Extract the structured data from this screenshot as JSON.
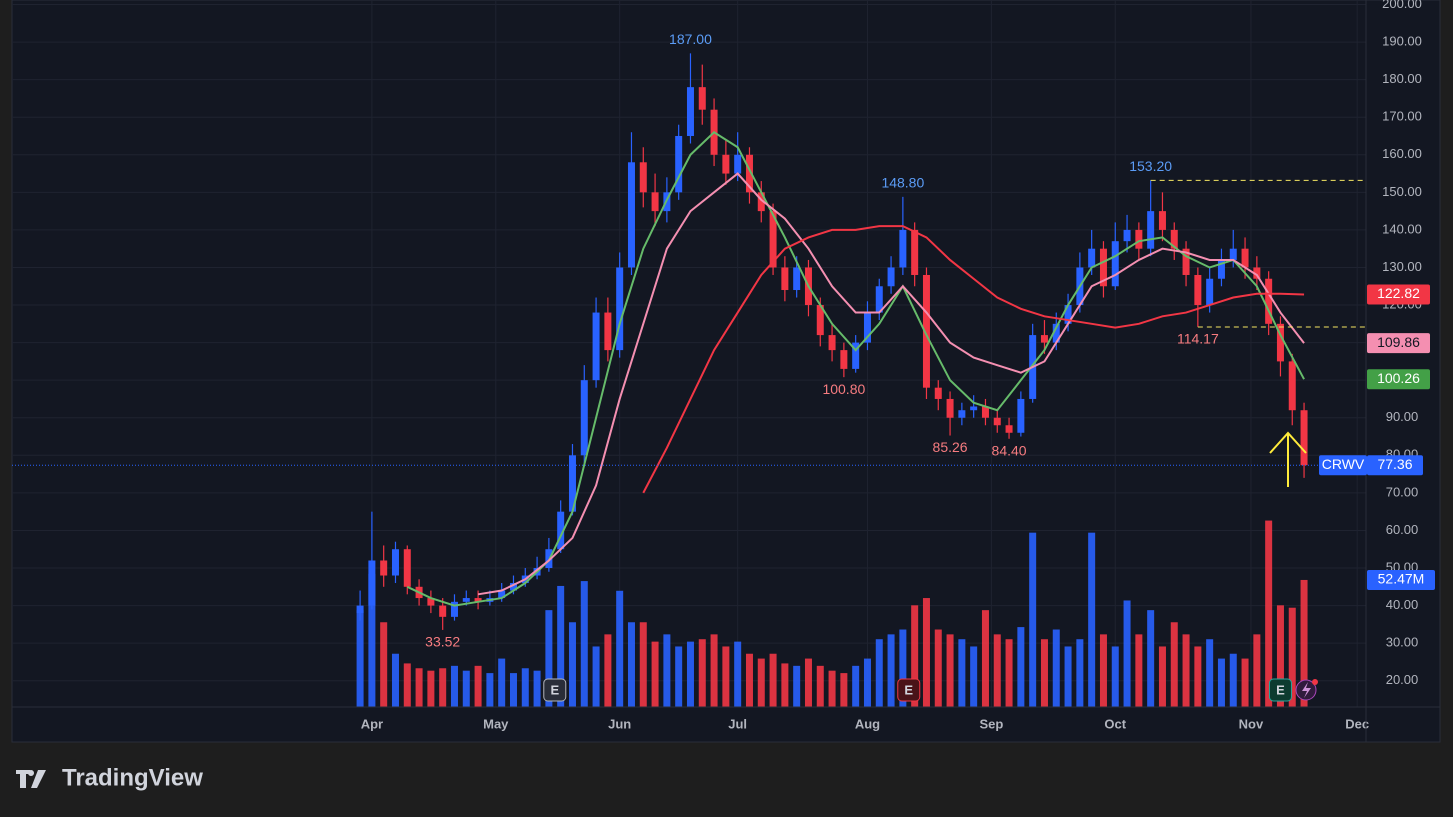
{
  "chart_data": {
    "type": "candlestick",
    "symbol": "CRWV",
    "up_color": "#2962ff",
    "down_color": "#f23645",
    "grid": true,
    "ylim": [
      13,
      201.2
    ],
    "yticks": [
      {
        "value": 20,
        "label": "20.00"
      },
      {
        "value": 30,
        "label": "30.00"
      },
      {
        "value": 40,
        "label": "40.00"
      },
      {
        "value": 50,
        "label": "50.00"
      },
      {
        "value": 60,
        "label": "60.00"
      },
      {
        "value": 70,
        "label": "70.00"
      },
      {
        "value": 80,
        "label": "80.00"
      },
      {
        "value": 90,
        "label": "90.00"
      },
      {
        "value": 100,
        "label": "100.00"
      },
      {
        "value": 110,
        "label": "110.00"
      },
      {
        "value": 120,
        "label": "120.00"
      },
      {
        "value": 130,
        "label": "130.00"
      },
      {
        "value": 140,
        "label": "140.00"
      },
      {
        "value": 150,
        "label": "150.00"
      },
      {
        "value": 160,
        "label": "160.00"
      },
      {
        "value": 170,
        "label": "170.00"
      },
      {
        "value": 180,
        "label": "180.00"
      },
      {
        "value": 190,
        "label": "190.00"
      },
      {
        "value": 200,
        "label": "200.00"
      }
    ],
    "xlim": [
      -59,
      170.5
    ],
    "xticks": [
      {
        "value": 2,
        "label": "Apr"
      },
      {
        "value": 23,
        "label": "May"
      },
      {
        "value": 44,
        "label": "Jun"
      },
      {
        "value": 64,
        "label": "Jul"
      },
      {
        "value": 86,
        "label": "Aug"
      },
      {
        "value": 107,
        "label": "Sep"
      },
      {
        "value": 128,
        "label": "Oct"
      },
      {
        "value": 151,
        "label": "Nov"
      },
      {
        "value": 169,
        "label": "Dec"
      }
    ],
    "x": [
      0,
      2,
      4,
      6,
      8,
      10,
      12,
      14,
      16,
      18,
      20,
      22,
      24,
      26,
      28,
      30,
      32,
      34,
      36,
      38,
      40,
      42,
      44,
      46,
      48,
      50,
      52,
      54,
      56,
      58,
      60,
      62,
      64,
      66,
      68,
      70,
      72,
      74,
      76,
      78,
      80,
      82,
      84,
      86,
      88,
      90,
      92,
      94,
      96,
      98,
      100,
      102,
      104,
      106,
      108,
      110,
      112,
      114,
      116,
      118,
      120,
      122,
      124,
      126,
      128,
      130,
      132,
      134,
      136,
      138,
      140,
      142,
      144,
      146,
      148,
      150,
      152,
      154,
      156,
      158,
      160
    ],
    "open": [
      38,
      40,
      52,
      48,
      55,
      45,
      42,
      40,
      37,
      41,
      42,
      41,
      42,
      44,
      46,
      48,
      50,
      55,
      65,
      80,
      100,
      118,
      108,
      130,
      158,
      150,
      145,
      150,
      165,
      178,
      172,
      160,
      155,
      160,
      150,
      145,
      130,
      124,
      130,
      120,
      112,
      108,
      103,
      110,
      118,
      125,
      130,
      140,
      128,
      98,
      95,
      90,
      92,
      93,
      90,
      88,
      86,
      95,
      112,
      110,
      115,
      120,
      130,
      135,
      125,
      137,
      140,
      135,
      145,
      140,
      135,
      128,
      120,
      127,
      132,
      135,
      130,
      127,
      115,
      105,
      92
    ],
    "high": [
      44,
      65,
      56,
      57,
      56,
      47,
      44,
      42,
      43,
      44,
      44,
      44,
      46,
      48,
      50,
      53,
      58,
      68,
      83,
      104,
      122,
      122,
      134,
      166,
      162,
      155,
      154,
      168,
      187,
      184,
      175,
      164,
      166,
      162,
      153,
      147,
      133,
      133,
      132,
      122,
      115,
      110,
      112,
      121,
      127,
      133,
      148.8,
      142,
      130,
      100,
      97,
      94,
      96,
      95,
      92,
      90,
      97,
      115,
      116,
      118,
      123,
      134,
      140,
      137,
      142,
      144,
      142,
      153.2,
      150,
      142,
      137,
      130,
      130,
      135,
      140,
      138,
      133,
      129,
      117,
      107,
      94
    ],
    "low": [
      36,
      39,
      45,
      46,
      43,
      40,
      38,
      33.52,
      36,
      40,
      39,
      40,
      41,
      43,
      45,
      47,
      49,
      54,
      64,
      78,
      98,
      105,
      106,
      128,
      146,
      141,
      142,
      148,
      163,
      168,
      157,
      152,
      153,
      147,
      142,
      128,
      121,
      122,
      117,
      109,
      105,
      100.8,
      102,
      108,
      116,
      123,
      128,
      125,
      95,
      92,
      85.26,
      88,
      90,
      88,
      86,
      84.4,
      85,
      94,
      107,
      108,
      113,
      118,
      128,
      122,
      124,
      134,
      132,
      133,
      137,
      132,
      125,
      114.17,
      118,
      125,
      130,
      127,
      124,
      112,
      101,
      88,
      74
    ],
    "close": [
      40,
      52,
      48,
      55,
      45,
      42,
      40,
      37,
      41,
      42,
      41,
      42,
      44,
      46,
      48,
      50,
      55,
      65,
      80,
      100,
      118,
      108,
      130,
      158,
      150,
      145,
      150,
      165,
      178,
      172,
      160,
      155,
      160,
      150,
      145,
      130,
      124,
      130,
      120,
      112,
      108,
      103,
      110,
      118,
      125,
      130,
      140,
      128,
      98,
      95,
      90,
      92,
      93,
      90,
      88,
      86,
      95,
      112,
      110,
      115,
      120,
      130,
      135,
      125,
      137,
      140,
      135,
      145,
      140,
      135,
      128,
      120,
      127,
      132,
      135,
      130,
      127,
      115,
      105,
      92,
      77.36
    ],
    "volume": [
      40,
      55,
      35,
      22,
      18,
      16,
      15,
      16,
      17,
      15,
      17,
      14,
      20,
      14,
      16,
      15,
      40,
      50,
      35,
      52,
      25,
      30,
      48,
      35,
      35,
      27,
      30,
      25,
      27,
      28,
      30,
      25,
      27,
      22,
      20,
      22,
      18,
      17,
      20,
      17,
      15,
      14,
      17,
      20,
      28,
      30,
      32,
      42,
      45,
      32,
      30,
      28,
      25,
      40,
      30,
      28,
      33,
      72,
      28,
      32,
      25,
      28,
      72,
      30,
      25,
      44,
      30,
      40,
      25,
      35,
      30,
      25,
      28,
      20,
      22,
      20,
      30,
      77,
      42,
      41,
      52.47
    ],
    "vlim": [
      0,
      292
    ],
    "series": [
      {
        "color": "#66bb6a",
        "x": [
          8,
          12,
          16,
          20,
          24,
          28,
          32,
          36,
          40,
          44,
          48,
          52,
          56,
          60,
          64,
          68,
          72,
          76,
          80,
          84,
          88,
          92,
          96,
          100,
          104,
          108,
          112,
          116,
          120,
          124,
          128,
          132,
          136,
          140,
          144,
          148,
          152,
          156,
          160
        ],
        "values": [
          45,
          42,
          40,
          41,
          42,
          46,
          52,
          65,
          90,
          115,
          135,
          148,
          160,
          166,
          162,
          150,
          138,
          125,
          115,
          108,
          115,
          125,
          112,
          100,
          94,
          92,
          100,
          108,
          120,
          130,
          133,
          137,
          138,
          133,
          130,
          132,
          125,
          112,
          100.26
        ]
      },
      {
        "color": "#f48fb1",
        "x": [
          20,
          24,
          28,
          32,
          36,
          40,
          44,
          48,
          52,
          56,
          60,
          64,
          68,
          72,
          76,
          80,
          84,
          88,
          92,
          96,
          100,
          104,
          108,
          112,
          116,
          120,
          124,
          128,
          132,
          136,
          140,
          144,
          148,
          152,
          156,
          160
        ],
        "values": [
          43,
          44,
          47,
          52,
          58,
          72,
          95,
          115,
          135,
          145,
          150,
          155,
          148,
          143,
          135,
          125,
          118,
          118,
          125,
          118,
          110,
          106,
          104,
          102,
          105,
          115,
          125,
          128,
          132,
          135,
          134,
          132,
          132,
          128,
          118,
          109.86
        ]
      },
      {
        "color": "#f23645",
        "x": [
          48,
          52,
          56,
          60,
          64,
          68,
          72,
          76,
          80,
          84,
          88,
          92,
          96,
          100,
          104,
          108,
          112,
          116,
          120,
          124,
          128,
          132,
          136,
          140,
          144,
          148,
          152,
          156,
          160
        ],
        "values": [
          70,
          82,
          95,
          108,
          118,
          128,
          135,
          138,
          140,
          140,
          141,
          141,
          138,
          132,
          127,
          122,
          119,
          117,
          116,
          115,
          114,
          115,
          117,
          118,
          120,
          122,
          123,
          123,
          122.82
        ]
      }
    ],
    "annotations": [
      {
        "x": 56,
        "value": 187,
        "label": "187.00",
        "kind": "high"
      },
      {
        "x": 92,
        "value": 148.8,
        "label": "148.80",
        "kind": "high"
      },
      {
        "x": 134,
        "value": 153.2,
        "label": "153.20",
        "kind": "high"
      },
      {
        "x": 142,
        "value": 114.17,
        "label": "114.17",
        "kind": "low"
      },
      {
        "x": 82,
        "value": 100.8,
        "label": "100.80",
        "kind": "low"
      },
      {
        "x": 100,
        "value": 85.26,
        "label": "85.26",
        "kind": "low"
      },
      {
        "x": 110,
        "value": 84.4,
        "label": "84.40",
        "kind": "low"
      },
      {
        "x": 14,
        "value": 33.52,
        "label": "33.52",
        "kind": "low"
      }
    ],
    "levels": [
      {
        "value": 153.2,
        "from": 134
      },
      {
        "value": 114.17,
        "from": 142
      }
    ],
    "price_labels": [
      {
        "value": 122.82,
        "label": "122.82",
        "color": "#f23645",
        "text_color": "#ffffff"
      },
      {
        "value": 109.86,
        "label": "109.86",
        "color": "#f48fb1",
        "text_color": "#131722"
      },
      {
        "value": 100.26,
        "label": "100.26",
        "color": "#43a047",
        "text_color": "#ffffff"
      }
    ],
    "last_price": {
      "value": 77.36,
      "label": "77.36"
    },
    "last_volume": {
      "value": 52.47,
      "label": "52.47M"
    },
    "events": [
      {
        "x": 33,
        "label": "E"
      },
      {
        "x": 93,
        "label": "E"
      },
      {
        "x": 156,
        "label": "E"
      }
    ]
  },
  "footer": {
    "brand": "TradingView"
  }
}
